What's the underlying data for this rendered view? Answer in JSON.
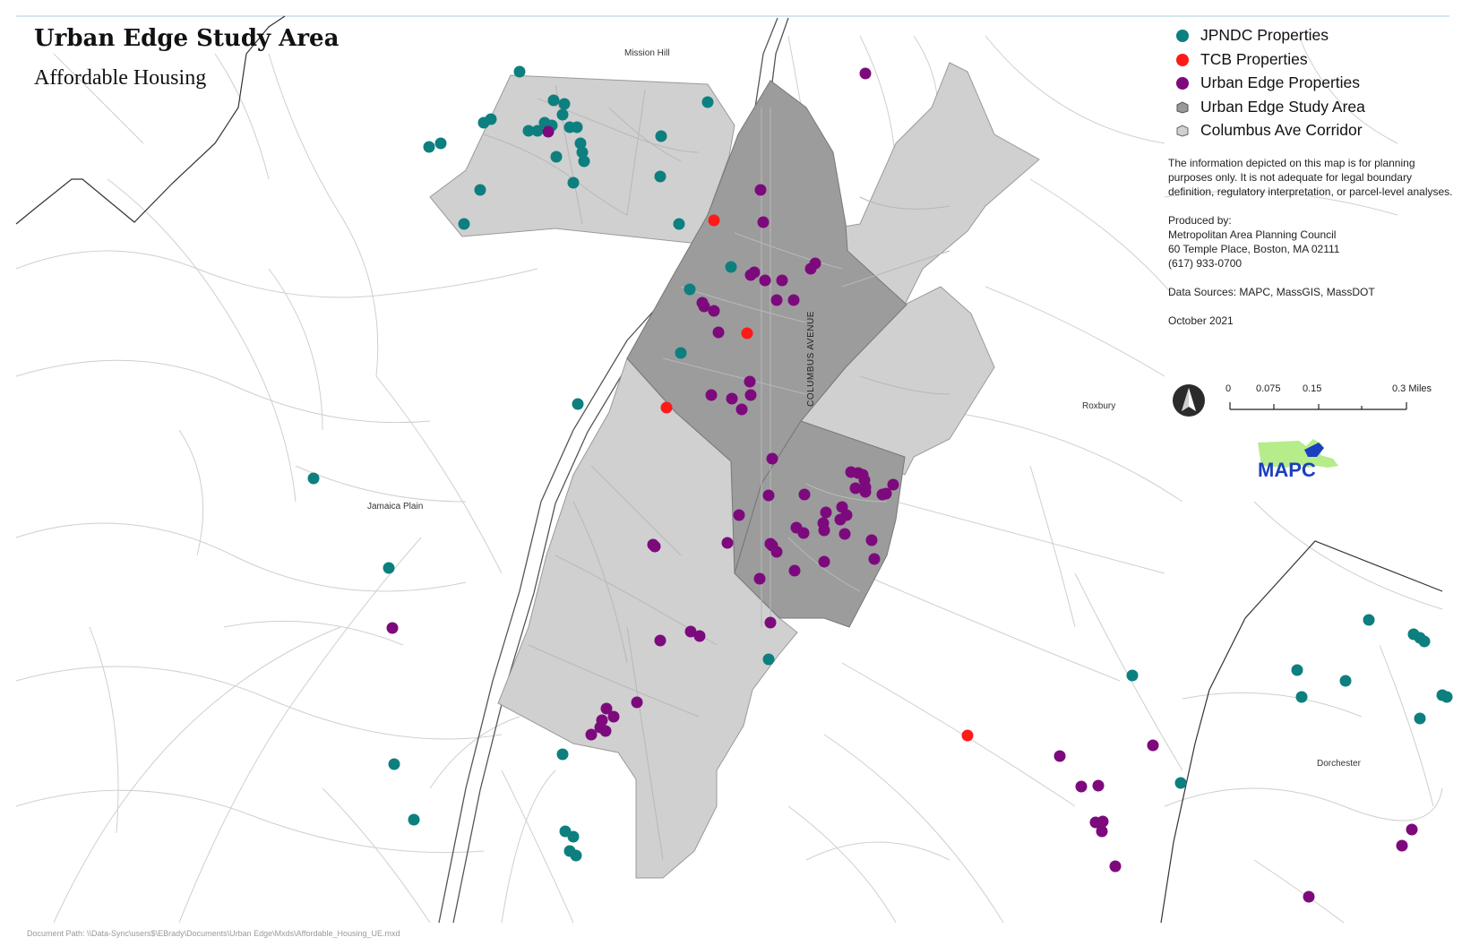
{
  "title": "Urban Edge Study Area",
  "subtitle": "Affordable Housing",
  "legend": {
    "items": [
      {
        "label": "JPNDC Properties",
        "symbol": "circle",
        "color": "#0d7f7f"
      },
      {
        "label": "TCB Properties",
        "symbol": "circle",
        "color": "#ff1a1a"
      },
      {
        "label": "Urban Edge Properties",
        "symbol": "circle",
        "color": "#7d0a7d"
      },
      {
        "label": "Urban Edge Study Area",
        "symbol": "polygon",
        "color": "#999999"
      },
      {
        "label": "Columbus Ave Corridor",
        "symbol": "polygon",
        "color": "#d0d0d0"
      }
    ]
  },
  "disclaimer": "The information depicted on this map is for planning purposes only. It is not adequate for legal boundary definition, regulatory interpretation, or parcel-level analyses.",
  "produced_by": "Produced by:\nMetropolitan Area Planning Council\n60 Temple Place, Boston, MA 02111\n(617) 933-0700",
  "data_sources": "Data Sources: MAPC, MassGIS, MassDOT",
  "date": "October 2021",
  "place_labels": {
    "mission_hill": "Mission Hill",
    "jamaica_plain": "Jamaica Plain",
    "roxbury": "Roxbury",
    "dorchester": "Dorchester"
  },
  "street_label": "COLUMBUS AVENUE",
  "scale_bar": {
    "ticks": [
      "0",
      "0.075",
      "0.15",
      "0.3 Miles"
    ]
  },
  "logo_text": "MAPC",
  "document_path": "Document Path: \\\\Data-Sync\\users$\\EBrady\\Documents\\Urban Edge\\Mxds\\Affordable_Housing_UE.mxd",
  "colors": {
    "jpndc": "#0d7f7f",
    "tcb": "#ff1a1a",
    "urban_edge": "#7d0a7d",
    "study_area": "#999999",
    "corridor": "#d0d0d0",
    "roads": "#c8c8c8"
  }
}
